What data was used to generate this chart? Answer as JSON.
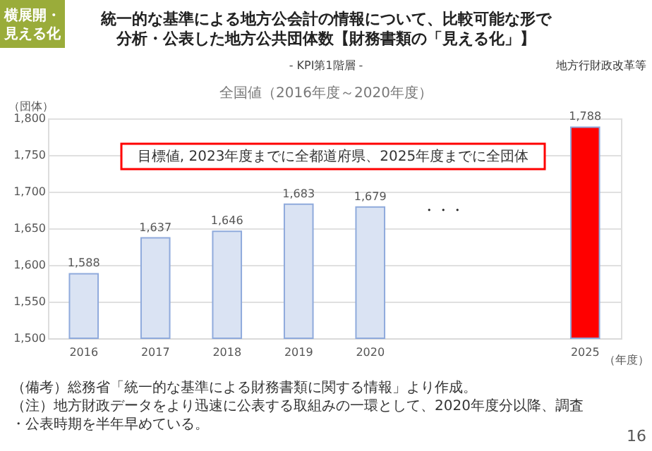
{
  "chart_data": {
    "type": "bar",
    "title": "統一的な基準による地方公会計の情報について、比較可能な形で分析・公表した地方公共団体数【財務書類の「見える化」】",
    "subtitle": "- KPI第1階層 -",
    "xlabel": "（年度）",
    "ylabel": "（団体）",
    "categories": [
      "2016",
      "2017",
      "2018",
      "2019",
      "2020",
      null,
      null,
      "2025"
    ],
    "values": [
      1588,
      1637,
      1646,
      1683,
      1679,
      null,
      null,
      1788
    ],
    "value_labels": [
      "1,588",
      "1,637",
      "1,646",
      "1,683",
      "1,679",
      null,
      null,
      "1,788"
    ],
    "colors": [
      "#dae3f3",
      "#dae3f3",
      "#dae3f3",
      "#dae3f3",
      "#dae3f3",
      null,
      null,
      "#ff0000"
    ],
    "ylim": [
      1500,
      1800
    ],
    "yticks": [
      {
        "value": 1500,
        "label": "1,500"
      },
      {
        "value": 1550,
        "label": "1,550"
      },
      {
        "value": 1600,
        "label": "1,600"
      },
      {
        "value": 1650,
        "label": "1,650"
      },
      {
        "value": 1700,
        "label": "1,700"
      },
      {
        "value": 1750,
        "label": "1,750"
      },
      {
        "value": 1800,
        "label": "1,800"
      }
    ],
    "grid": "y",
    "annotations": [
      "横展開・見える化",
      "地方行財政改革等",
      "全国値（2016年度～2020年度）",
      "目標値, 2023年度までに全都道府県、2025年度までに全団体",
      "・・・",
      "（備考）総務省「統一的な基準による財務書類に関する情報」より作成。",
      "（注）地方財政データをより迅速に公表する取組みの一環として、2020年度分以降、調査・公表時期を半年早めている。",
      "16"
    ]
  }
}
